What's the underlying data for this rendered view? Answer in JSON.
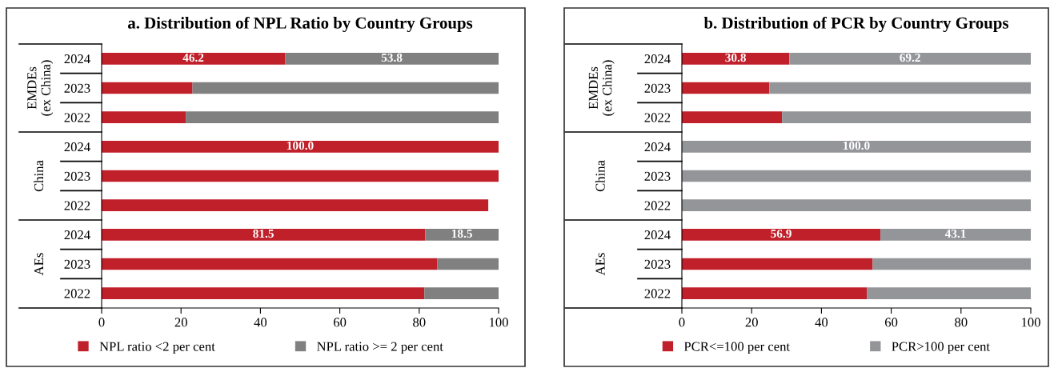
{
  "chart_data": [
    {
      "type": "bar",
      "orientation": "horizontal",
      "stacked": true,
      "title": "a. Distribution of NPL Ratio by Country Groups",
      "categories": [
        "2024",
        "2023",
        "2022",
        "2024",
        "2023",
        "2022",
        "2024",
        "2023",
        "2022"
      ],
      "annotations": [
        "EMDEs\n(ex China)",
        "China",
        "AEs"
      ],
      "series": [
        {
          "name": "NPL ratio <2 per cent",
          "color": "#c0202a",
          "values": [
            46.2,
            22.9,
            21.2,
            100.0,
            100.0,
            97.4,
            81.5,
            84.5,
            81.3
          ],
          "value_labels": [
            "46.2",
            null,
            null,
            "100.0",
            null,
            null,
            "81.5",
            null,
            null
          ]
        },
        {
          "name": "NPL ratio >= 2 per cent",
          "color": "#808080",
          "values": [
            53.8,
            77.1,
            78.8,
            0,
            0,
            0,
            18.5,
            15.5,
            18.7
          ],
          "value_labels": [
            "53.8",
            null,
            null,
            null,
            null,
            null,
            "18.5",
            null,
            null
          ]
        }
      ],
      "xlim": [
        0,
        100
      ],
      "xticks": [
        0,
        20,
        40,
        60,
        80,
        100
      ],
      "legend": "bottom"
    },
    {
      "type": "bar",
      "orientation": "horizontal",
      "stacked": true,
      "title": "b. Distribution of PCR by Country Groups",
      "categories": [
        "2024",
        "2023",
        "2022",
        "2024",
        "2023",
        "2022",
        "2024",
        "2023",
        "2022"
      ],
      "annotations": [
        "EMDEs\n(ex China)",
        "China",
        "AEs"
      ],
      "series": [
        {
          "name": "PCR<=100 per cent",
          "color": "#c0202a",
          "values": [
            30.8,
            25.1,
            28.7,
            0,
            0,
            0,
            56.9,
            54.7,
            53.0
          ],
          "value_labels": [
            "30.8",
            null,
            null,
            null,
            null,
            null,
            "56.9",
            null,
            null
          ]
        },
        {
          "name": "PCR>100 per cent",
          "color": "#939598",
          "values": [
            69.2,
            74.9,
            71.3,
            100.0,
            100.0,
            100.0,
            43.1,
            45.3,
            47.0
          ],
          "value_labels": [
            "69.2",
            null,
            null,
            "100.0",
            null,
            null,
            "43.1",
            null,
            null
          ]
        }
      ],
      "xlim": [
        0,
        100
      ],
      "xticks": [
        0,
        20,
        40,
        60,
        80,
        100
      ],
      "legend": "bottom"
    }
  ]
}
